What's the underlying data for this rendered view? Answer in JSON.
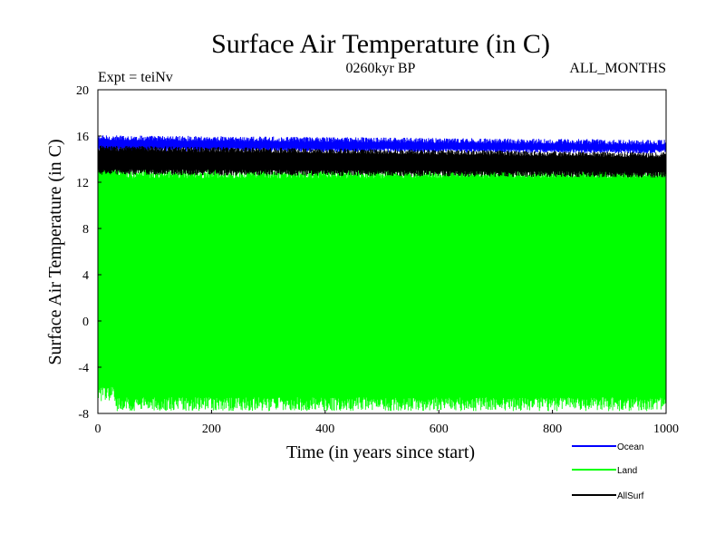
{
  "chart_data": {
    "type": "line",
    "title": "Surface Air Temperature (in C)",
    "subtitle": "0260kyr BP",
    "left_annotation": "Expt = teiNv",
    "right_annotation": "ALL_MONTHS",
    "xlabel": "Time (in years since start)",
    "ylabel": "Surface Air Temperature (in C)",
    "xlim": [
      0,
      1000
    ],
    "ylim": [
      -8,
      20
    ],
    "x_ticks": [
      0,
      200,
      400,
      600,
      800,
      1000
    ],
    "y_ticks": [
      -8,
      -4,
      0,
      4,
      8,
      12,
      16,
      20
    ],
    "x_tick_labels": [
      "0",
      "200",
      "400",
      "600",
      "800",
      "1000"
    ],
    "y_tick_labels": [
      "-8",
      "-4",
      "0",
      "4",
      "8",
      "12",
      "16",
      "20"
    ],
    "grid": false,
    "legend_position": "bottom-right, outside plot",
    "series": [
      {
        "name": "Ocean",
        "color": "#0000ff",
        "start_value": 16.0,
        "mean_low": 14.8,
        "mean_high": 15.4,
        "end_value": 15.0
      },
      {
        "name": "Land",
        "color": "#00ff00",
        "start_value": 13.5,
        "mean_low": -7.2,
        "mean_high": 12.8,
        "end_value": 12.5
      },
      {
        "name": "AllSurf",
        "color": "#000000",
        "start_value": 15.0,
        "mean_low": 12.8,
        "mean_high": 14.3,
        "end_value": 13.5
      }
    ]
  }
}
